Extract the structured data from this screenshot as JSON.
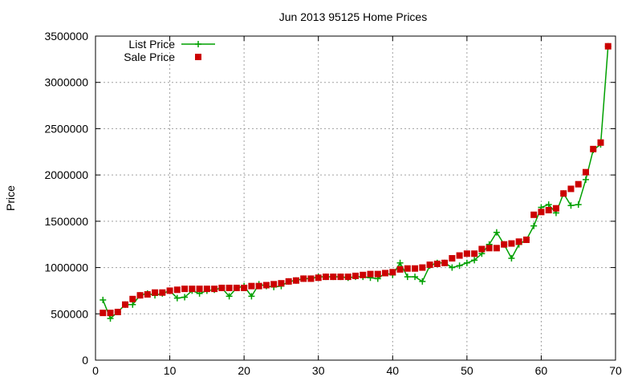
{
  "chart_data": {
    "type": "line",
    "title": "Jun 2013 95125 Home Prices",
    "xlabel": "",
    "ylabel": "Price",
    "xlim": [
      0,
      70
    ],
    "ylim": [
      0,
      3500000
    ],
    "x_ticks": [
      0,
      10,
      20,
      30,
      40,
      50,
      60,
      70
    ],
    "y_ticks": [
      0,
      500000,
      1000000,
      1500000,
      2000000,
      2500000,
      3000000,
      3500000
    ],
    "grid": true,
    "legend_position": "top-left",
    "x": [
      1,
      2,
      3,
      4,
      5,
      6,
      7,
      8,
      9,
      10,
      11,
      12,
      13,
      14,
      15,
      16,
      17,
      18,
      19,
      20,
      21,
      22,
      23,
      24,
      25,
      26,
      27,
      28,
      29,
      30,
      31,
      32,
      33,
      34,
      35,
      36,
      37,
      38,
      39,
      40,
      41,
      42,
      43,
      44,
      45,
      46,
      47,
      48,
      49,
      50,
      51,
      52,
      53,
      54,
      55,
      56,
      57,
      58,
      59,
      60,
      61,
      62,
      63,
      64,
      65,
      66,
      67,
      68,
      69
    ],
    "series": [
      {
        "name": "List Price",
        "style": "line+cross",
        "color": "#00a000",
        "values": [
          650000,
          450000,
          520000,
          600000,
          600000,
          700000,
          720000,
          700000,
          720000,
          750000,
          670000,
          680000,
          750000,
          720000,
          750000,
          760000,
          780000,
          690000,
          780000,
          800000,
          690000,
          820000,
          800000,
          790000,
          800000,
          850000,
          860000,
          880000,
          880000,
          900000,
          900000,
          900000,
          900000,
          890000,
          900000,
          900000,
          890000,
          880000,
          940000,
          920000,
          1050000,
          900000,
          900000,
          850000,
          1020000,
          1050000,
          1050000,
          1000000,
          1020000,
          1050000,
          1080000,
          1150000,
          1250000,
          1380000,
          1250000,
          1100000,
          1250000,
          1300000,
          1450000,
          1650000,
          1680000,
          1590000,
          1800000,
          1670000,
          1680000,
          1950000,
          2270000,
          2330000,
          3390000
        ]
      },
      {
        "name": "Sale Price",
        "style": "square",
        "color": "#cc0000",
        "values": [
          510000,
          510000,
          520000,
          600000,
          660000,
          700000,
          710000,
          730000,
          730000,
          750000,
          760000,
          770000,
          770000,
          770000,
          770000,
          770000,
          780000,
          780000,
          780000,
          780000,
          800000,
          800000,
          810000,
          820000,
          830000,
          850000,
          860000,
          880000,
          880000,
          890000,
          900000,
          900000,
          900000,
          900000,
          910000,
          920000,
          930000,
          930000,
          940000,
          950000,
          980000,
          990000,
          990000,
          1000000,
          1030000,
          1040000,
          1050000,
          1100000,
          1130000,
          1150000,
          1150000,
          1200000,
          1210000,
          1210000,
          1250000,
          1260000,
          1280000,
          1300000,
          1570000,
          1600000,
          1620000,
          1640000,
          1800000,
          1850000,
          1900000,
          2030000,
          2280000,
          2350000,
          3390000
        ]
      }
    ]
  }
}
